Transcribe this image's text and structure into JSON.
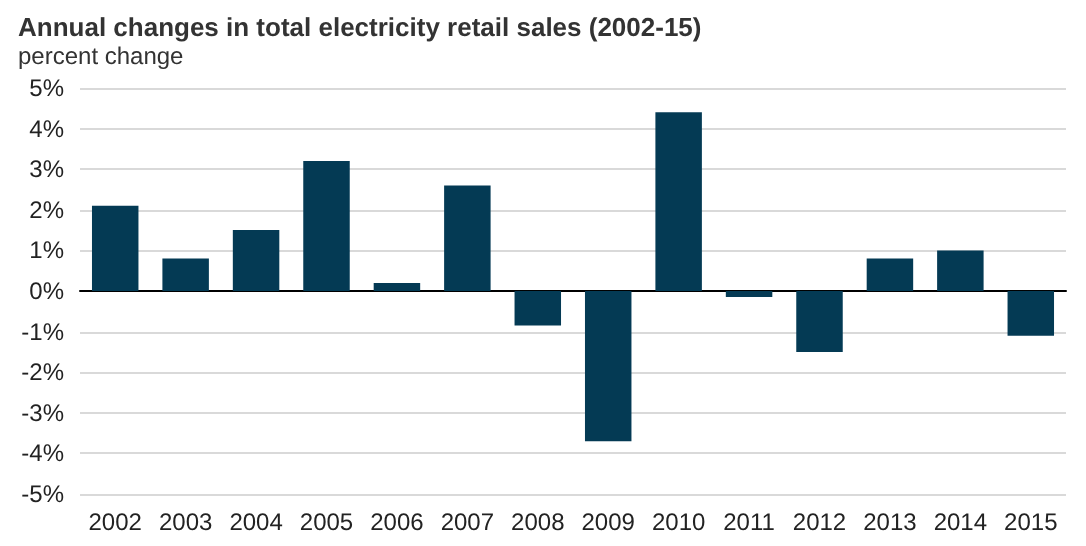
{
  "chart_data": {
    "type": "bar",
    "title": "Annual changes in total electricity retail sales (2002-15)",
    "ylabel": "percent change",
    "categories": [
      "2002",
      "2003",
      "2004",
      "2005",
      "2006",
      "2007",
      "2008",
      "2009",
      "2010",
      "2011",
      "2012",
      "2013",
      "2014",
      "2015"
    ],
    "values": [
      2.1,
      0.8,
      1.5,
      3.2,
      0.2,
      2.6,
      -0.85,
      -3.7,
      4.4,
      -0.15,
      -1.5,
      0.8,
      1.0,
      -1.1
    ],
    "color": "#043a54",
    "ylim": [
      -5,
      5
    ],
    "yticks": [
      {
        "value": -5,
        "label": "-5%"
      },
      {
        "value": -4,
        "label": "-4%"
      },
      {
        "value": -3,
        "label": "-3%"
      },
      {
        "value": -2,
        "label": "-2%"
      },
      {
        "value": -1,
        "label": "-1%"
      },
      {
        "value": 0,
        "label": "0%"
      },
      {
        "value": 1,
        "label": "1%"
      },
      {
        "value": 2,
        "label": "2%"
      },
      {
        "value": 3,
        "label": "3%"
      },
      {
        "value": 4,
        "label": "4%"
      },
      {
        "value": 5,
        "label": "5%"
      }
    ],
    "grid": "y"
  }
}
